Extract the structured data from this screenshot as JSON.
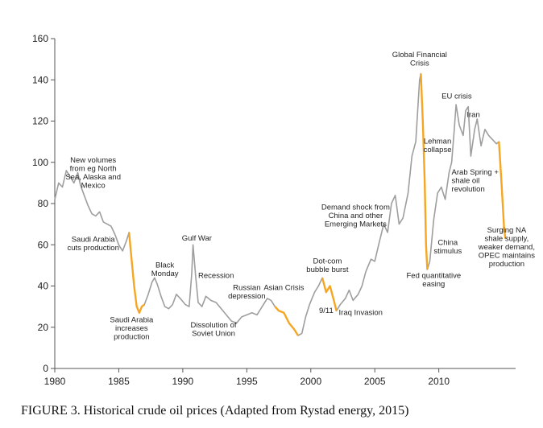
{
  "caption": "FIGURE 3. Historical crude oil prices (Adapted from Rystad energy, 2015)",
  "chart_data": {
    "type": "line",
    "title": "",
    "xlabel": "",
    "ylabel": "",
    "xlim": [
      1980,
      2016
    ],
    "ylim": [
      0,
      160
    ],
    "grid": false,
    "x_ticks": [
      1980,
      1985,
      1990,
      1995,
      2000,
      2005,
      2010
    ],
    "y_ticks": [
      0,
      20,
      40,
      60,
      80,
      100,
      120,
      140,
      160
    ],
    "colors": {
      "price_line": "#9e9e9e",
      "highlight": "#f5a623",
      "axis": "#555555"
    },
    "series": [
      {
        "values": [
          [
            1980,
            82
          ],
          [
            1980.3,
            90
          ],
          [
            1980.6,
            88
          ],
          [
            1980.9,
            96
          ],
          [
            1981.2,
            93
          ],
          [
            1981.5,
            90
          ],
          [
            1981.8,
            95
          ],
          [
            1982.0,
            89
          ],
          [
            1982.3,
            84
          ],
          [
            1982.6,
            79
          ],
          [
            1982.9,
            75
          ],
          [
            1983.2,
            74
          ],
          [
            1983.5,
            76
          ],
          [
            1983.8,
            71
          ],
          [
            1984.1,
            70
          ],
          [
            1984.4,
            69
          ],
          [
            1984.7,
            65
          ],
          [
            1985.0,
            60
          ],
          [
            1985.3,
            57
          ],
          [
            1985.6,
            62
          ],
          [
            1985.8,
            66
          ],
          [
            1986.0,
            53
          ],
          [
            1986.2,
            40
          ],
          [
            1986.4,
            30
          ],
          [
            1986.6,
            27
          ],
          [
            1986.8,
            30
          ],
          [
            1987.0,
            31
          ],
          [
            1987.3,
            36
          ],
          [
            1987.6,
            42
          ],
          [
            1987.8,
            44
          ],
          [
            1988.0,
            41
          ],
          [
            1988.3,
            35
          ],
          [
            1988.6,
            30
          ],
          [
            1988.9,
            29
          ],
          [
            1989.2,
            31
          ],
          [
            1989.5,
            36
          ],
          [
            1989.8,
            34
          ],
          [
            1990.2,
            31
          ],
          [
            1990.5,
            30
          ],
          [
            1990.7,
            46
          ],
          [
            1990.8,
            60
          ],
          [
            1991.0,
            45
          ],
          [
            1991.2,
            32
          ],
          [
            1991.5,
            30
          ],
          [
            1991.8,
            35
          ],
          [
            1992.2,
            33
          ],
          [
            1992.6,
            32
          ],
          [
            1993.0,
            29
          ],
          [
            1993.4,
            26
          ],
          [
            1993.8,
            23
          ],
          [
            1994.2,
            22
          ],
          [
            1994.6,
            25
          ],
          [
            1995.0,
            26
          ],
          [
            1995.4,
            27
          ],
          [
            1995.8,
            26
          ],
          [
            1996.2,
            30
          ],
          [
            1996.6,
            34
          ],
          [
            1996.9,
            33
          ],
          [
            1997.2,
            30
          ],
          [
            1997.5,
            28
          ],
          [
            1997.9,
            27
          ],
          [
            1998.3,
            22
          ],
          [
            1998.7,
            19
          ],
          [
            1999.0,
            16
          ],
          [
            1999.3,
            17
          ],
          [
            1999.6,
            25
          ],
          [
            1999.9,
            31
          ],
          [
            2000.3,
            37
          ],
          [
            2000.6,
            40
          ],
          [
            2000.9,
            44
          ],
          [
            2001.2,
            37
          ],
          [
            2001.5,
            40
          ],
          [
            2001.8,
            33
          ],
          [
            2002.0,
            28
          ],
          [
            2002.3,
            31
          ],
          [
            2002.7,
            34
          ],
          [
            2003.0,
            38
          ],
          [
            2003.3,
            33
          ],
          [
            2003.7,
            36
          ],
          [
            2004.0,
            40
          ],
          [
            2004.3,
            47
          ],
          [
            2004.7,
            53
          ],
          [
            2005.0,
            52
          ],
          [
            2005.3,
            60
          ],
          [
            2005.7,
            70
          ],
          [
            2006.0,
            66
          ],
          [
            2006.3,
            80
          ],
          [
            2006.6,
            84
          ],
          [
            2006.9,
            70
          ],
          [
            2007.2,
            73
          ],
          [
            2007.6,
            85
          ],
          [
            2007.9,
            103
          ],
          [
            2008.2,
            110
          ],
          [
            2008.5,
            140
          ],
          [
            2008.6,
            143
          ],
          [
            2008.75,
            120
          ],
          [
            2008.9,
            90
          ],
          [
            2009.0,
            60
          ],
          [
            2009.1,
            48
          ],
          [
            2009.3,
            52
          ],
          [
            2009.6,
            72
          ],
          [
            2009.9,
            85
          ],
          [
            2010.2,
            88
          ],
          [
            2010.5,
            82
          ],
          [
            2010.8,
            95
          ],
          [
            2011.0,
            100
          ],
          [
            2011.2,
            115
          ],
          [
            2011.35,
            128
          ],
          [
            2011.6,
            118
          ],
          [
            2011.9,
            113
          ],
          [
            2012.1,
            125
          ],
          [
            2012.3,
            127
          ],
          [
            2012.5,
            103
          ],
          [
            2012.8,
            116
          ],
          [
            2013.0,
            121
          ],
          [
            2013.3,
            108
          ],
          [
            2013.6,
            116
          ],
          [
            2013.9,
            113
          ],
          [
            2014.2,
            111
          ],
          [
            2014.5,
            109
          ],
          [
            2014.7,
            110
          ],
          [
            2014.9,
            90
          ],
          [
            2015.1,
            68
          ],
          [
            2015.2,
            63
          ]
        ]
      }
    ],
    "highlight_ranges": [
      [
        1985.8,
        1987.0
      ],
      [
        1997.2,
        1999.0
      ],
      [
        2000.9,
        2002.0
      ],
      [
        2008.55,
        2009.1
      ],
      [
        2014.7,
        2015.2
      ]
    ],
    "annotations": [
      {
        "lines": [
          "New volumes",
          "from eg North",
          "Sea, Alaska and",
          "Mexico"
        ],
        "x": 1983.0,
        "y": 100,
        "anchor": "middle"
      },
      {
        "lines": [
          "Saudi Arabia",
          "cuts production"
        ],
        "x": 1983.0,
        "y": 61.5,
        "anchor": "middle"
      },
      {
        "lines": [
          "Saudi Arabia",
          "increases",
          "production"
        ],
        "x": 1986.0,
        "y": 22.5,
        "anchor": "middle"
      },
      {
        "lines": [
          "Black",
          "Monday"
        ],
        "x": 1988.6,
        "y": 49,
        "anchor": "middle"
      },
      {
        "lines": [
          "Gulf War"
        ],
        "x": 1991.1,
        "y": 62,
        "anchor": "middle"
      },
      {
        "lines": [
          "Recession"
        ],
        "x": 1992.6,
        "y": 44,
        "anchor": "middle"
      },
      {
        "lines": [
          "Dissolution of",
          "Soviet Union"
        ],
        "x": 1992.4,
        "y": 20,
        "anchor": "middle"
      },
      {
        "lines": [
          "Russian",
          "depression"
        ],
        "x": 1995.0,
        "y": 38,
        "anchor": "middle"
      },
      {
        "lines": [
          "Asian Crisis"
        ],
        "x": 1997.9,
        "y": 38,
        "anchor": "middle"
      },
      {
        "lines": [
          "Dot-com",
          "bubble burst"
        ],
        "x": 2001.3,
        "y": 51,
        "anchor": "middle"
      },
      {
        "lines": [
          "9/11"
        ],
        "x": 2001.2,
        "y": 27,
        "anchor": "middle"
      },
      {
        "lines": [
          "Iraq Invasion"
        ],
        "x": 2003.9,
        "y": 26,
        "anchor": "middle"
      },
      {
        "lines": [
          "Demand shock from",
          "China and other",
          "Emerging Markets"
        ],
        "x": 2003.5,
        "y": 77,
        "anchor": "middle"
      },
      {
        "lines": [
          "Global Financial",
          "Crisis"
        ],
        "x": 2008.5,
        "y": 151,
        "anchor": "middle"
      },
      {
        "lines": [
          "Fed quantitative",
          "easing"
        ],
        "x": 2009.6,
        "y": 44,
        "anchor": "middle"
      },
      {
        "lines": [
          "Lehman",
          "collapse"
        ],
        "x": 2009.9,
        "y": 109,
        "anchor": "middle"
      },
      {
        "lines": [
          "EU crisis"
        ],
        "x": 2011.4,
        "y": 131,
        "anchor": "middle"
      },
      {
        "lines": [
          "Iran"
        ],
        "x": 2012.7,
        "y": 122,
        "anchor": "middle"
      },
      {
        "lines": [
          "China",
          "stimulus"
        ],
        "x": 2010.7,
        "y": 60,
        "anchor": "middle"
      },
      {
        "lines": [
          "Arab Spring +",
          "shale oil",
          "revolution"
        ],
        "x": 2011.0,
        "y": 94,
        "anchor": "start"
      },
      {
        "lines": [
          "Surging NA",
          "shale supply,",
          "weaker demand,",
          "OPEC maintains",
          "production"
        ],
        "x": 2015.3,
        "y": 66,
        "anchor": "middle"
      }
    ]
  }
}
